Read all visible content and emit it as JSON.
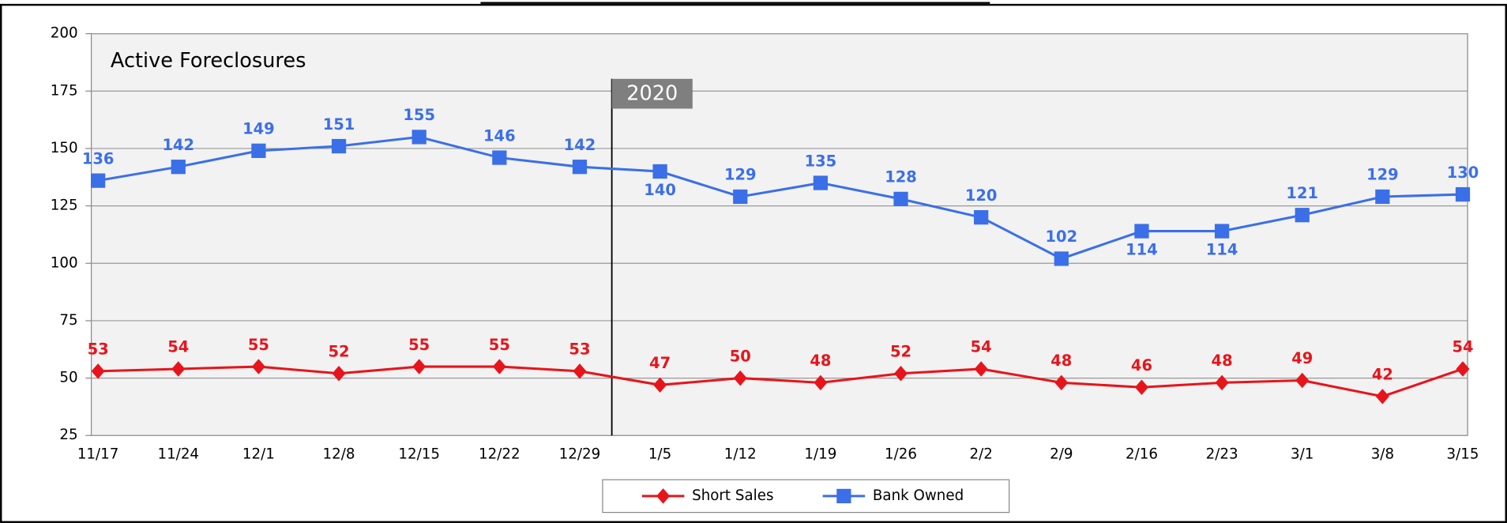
{
  "chart_data": {
    "type": "line",
    "title": "Active Foreclosures",
    "categories": [
      "11/17",
      "11/24",
      "12/1",
      "12/8",
      "12/15",
      "12/22",
      "12/29",
      "1/5",
      "1/12",
      "1/19",
      "1/26",
      "2/2",
      "2/9",
      "2/16",
      "2/23",
      "3/1",
      "3/8",
      "3/15"
    ],
    "series": [
      {
        "name": "Short Sales",
        "color": "#e8141b",
        "marker": "diamond",
        "values": [
          53,
          54,
          55,
          52,
          55,
          55,
          53,
          47,
          50,
          48,
          52,
          54,
          48,
          46,
          48,
          49,
          42,
          54
        ]
      },
      {
        "name": "Bank Owned",
        "color": "#3b6fe8",
        "marker": "square",
        "values": [
          136,
          142,
          149,
          151,
          155,
          146,
          142,
          140,
          129,
          135,
          128,
          120,
          102,
          114,
          114,
          121,
          129,
          130
        ]
      }
    ],
    "ylim": [
      25,
      200
    ],
    "yticks": [
      25,
      50,
      75,
      100,
      125,
      150,
      175,
      200
    ],
    "grid": true,
    "annotations": [
      "2020"
    ]
  }
}
